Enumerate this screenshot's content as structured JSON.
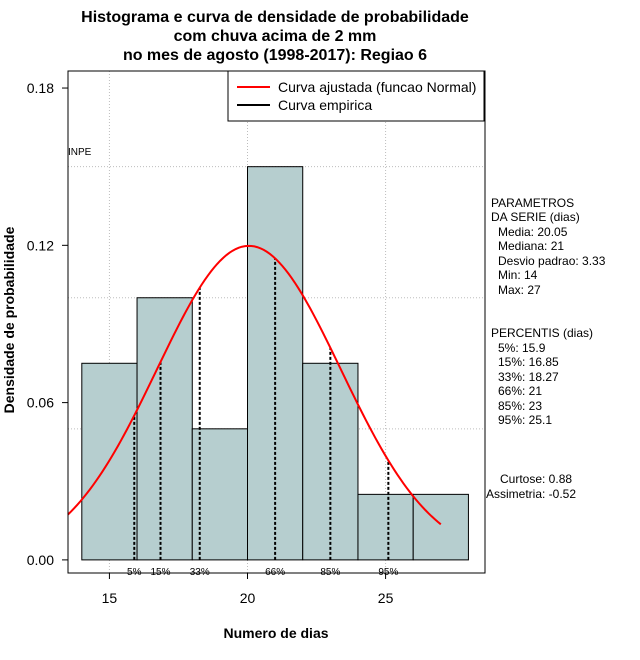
{
  "chart_data": {
    "type": "bar",
    "title_lines": [
      "Histograma e curva de densidade de probabilidade",
      "com chuva acima de 2 mm",
      "no mes de agosto (1998-2017): Regiao 6"
    ],
    "xlabel": "Numero de dias",
    "ylabel": "Densidade de probabilidade",
    "xlim": [
      13.5,
      28.6
    ],
    "ylim": [
      -0.005,
      0.1865
    ],
    "x_ticks": [
      15,
      20,
      25
    ],
    "y_ticks": [
      0.0,
      0.06,
      0.12,
      0.18
    ],
    "y_tick_labels": [
      "0.00",
      "0.06",
      "0.12",
      "0.18"
    ],
    "grid_y": [
      0.05,
      0.1,
      0.15
    ],
    "grid_x": [
      15,
      20,
      25
    ],
    "bar_color": "#b6cecf",
    "bins": [
      {
        "from": 14,
        "to": 16,
        "density": 0.075
      },
      {
        "from": 16,
        "to": 18,
        "density": 0.1
      },
      {
        "from": 18,
        "to": 20,
        "density": 0.05
      },
      {
        "from": 20,
        "to": 22,
        "density": 0.15
      },
      {
        "from": 22,
        "to": 24,
        "density": 0.075
      },
      {
        "from": 24,
        "to": 26,
        "density": 0.025
      },
      {
        "from": 26,
        "to": 28,
        "density": 0.025
      }
    ],
    "fitted_curve": {
      "name": "Curva ajustada (funcao Normal)",
      "color": "#ff0000",
      "mean": 20.05,
      "sd": 3.33,
      "from": 13.5,
      "to": 27
    },
    "empirical_curve": {
      "name": "Curva empirica",
      "color": "#000000"
    },
    "percentile_markers": [
      {
        "label": "5%",
        "value": 15.9
      },
      {
        "label": "15%",
        "value": 16.85
      },
      {
        "label": "33%",
        "value": 18.27
      },
      {
        "label": "66%",
        "value": 21
      },
      {
        "label": "85%",
        "value": 23
      },
      {
        "label": "95%",
        "value": 25.1
      }
    ],
    "legend_position": "top-right",
    "watermark": "INPE"
  },
  "side_panel": {
    "params_title": [
      "PARAMETROS",
      "DA SERIE (dias)"
    ],
    "params": [
      "Media: 20.05",
      "Mediana: 21",
      "Desvio padrao: 3.33",
      "Min: 14",
      "Max: 27"
    ],
    "pct_title": "PERCENTIS (dias)",
    "percentiles": [
      "5%: 15.9",
      "15%: 16.85",
      "33%: 18.27",
      "66%: 21",
      "85%: 23",
      "95%: 25.1"
    ],
    "shape": [
      "Curtose: 0.88",
      "Assimetria: -0.52"
    ]
  }
}
